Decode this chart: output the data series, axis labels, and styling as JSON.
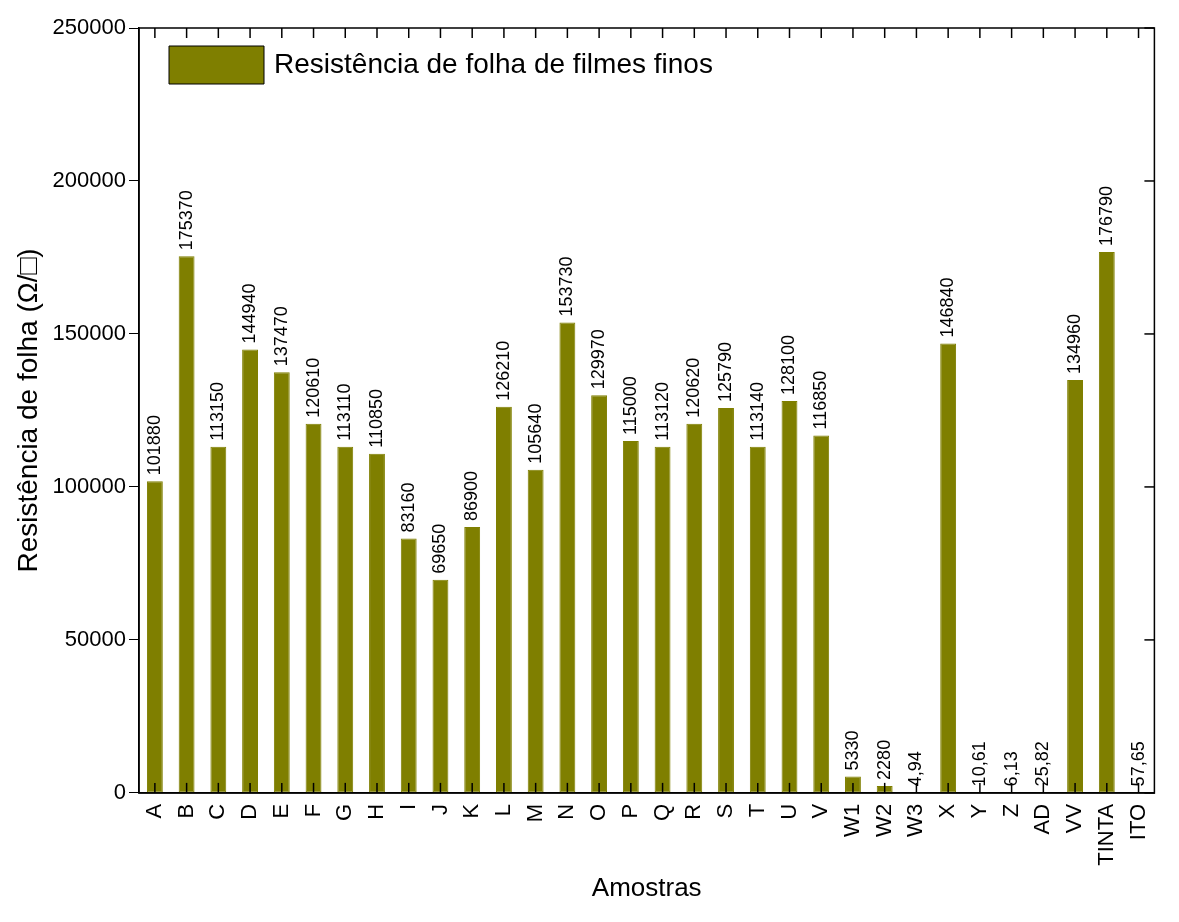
{
  "chart_data": {
    "type": "bar",
    "xlabel": "Amostras",
    "ylabel": "Resistência de folha (Ω/□)",
    "categories": [
      "A",
      "B",
      "C",
      "D",
      "E",
      "F",
      "G",
      "H",
      "I",
      "J",
      "K",
      "L",
      "M",
      "N",
      "O",
      "P",
      "Q",
      "R",
      "S",
      "T",
      "U",
      "V",
      "W1",
      "W2",
      "W3",
      "X",
      "Y",
      "Z",
      "AD",
      "VV",
      "TINTA",
      "ITO"
    ],
    "series": [
      {
        "name": "Resistência de folha de filmes finos",
        "color": "#7f7f00",
        "values": [
          101880,
          175370,
          113150,
          144940,
          137470,
          120610,
          113110,
          110850,
          83160,
          69650,
          86900,
          126210,
          105640,
          153730,
          129970,
          115000,
          113120,
          120620,
          125790,
          113140,
          128100,
          116850,
          5330,
          2280,
          4.94,
          146840,
          10.61,
          6.13,
          25.82,
          134960,
          176790,
          57.65
        ],
        "value_labels": [
          "101880",
          "175370",
          "113150",
          "144940",
          "137470",
          "120610",
          "113110",
          "110850",
          "83160",
          "69650",
          "86900",
          "126210",
          "105640",
          "153730",
          "129970",
          "115000",
          "113120",
          "120620",
          "125790",
          "113140",
          "128100",
          "116850",
          "5330",
          "2280",
          "4,94",
          "146840",
          "10,61",
          "6,13",
          "25,82",
          "134960",
          "176790",
          "57,65"
        ]
      }
    ],
    "ylim": [
      0,
      250000
    ],
    "yticks": [
      0,
      50000,
      100000,
      150000,
      200000,
      250000
    ],
    "grid": false,
    "legend": "top left"
  }
}
